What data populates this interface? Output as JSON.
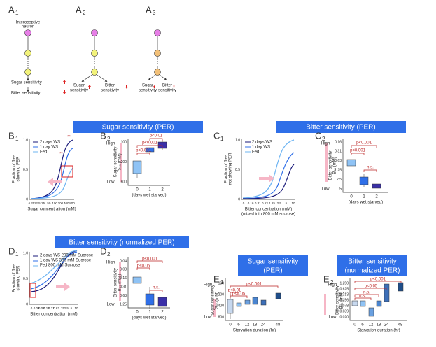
{
  "panels": {
    "a1": {
      "letter": "A",
      "sub": "1",
      "neuron": [
        "Interoceptive",
        "neuron"
      ],
      "sugar": "Sugar sensitivity",
      "bitter": "Bitter sensitivity"
    },
    "a2": {
      "letter": "A",
      "sub": "2",
      "sugar": [
        "Sugar",
        "sensitivity"
      ],
      "bitter": [
        "Bitter",
        "sensitivity"
      ]
    },
    "a3": {
      "letter": "A",
      "sub": "3",
      "sugar": [
        "Sugar",
        "sensitivity"
      ],
      "bitter": [
        "Bitter",
        "sensitivity"
      ]
    },
    "b_header": "Sugar sensitivity (PER)",
    "c_header": "Bitter sensitivity (PER)",
    "d_header": "Bitter sensitivity (normalized PER)",
    "b1": {
      "letter": "B",
      "sub": "1",
      "legend": [
        "2 days WS",
        "1 day  WS",
        "Fed"
      ],
      "y_label": [
        "Fraction of flies",
        "showing PER"
      ],
      "yticks": [
        "0",
        "0.5",
        "1.0"
      ],
      "xticks": [
        "6.25",
        "12.5",
        "25",
        "50",
        "100",
        "200",
        "400",
        "800"
      ],
      "x_label": "Sugar concentration (mM)",
      "stars": "**"
    },
    "b2": {
      "letter": "B",
      "sub": "2",
      "y_label": [
        "Sugar sensitivity",
        "S₅₀ (mM)"
      ],
      "high": "High",
      "low": "Low",
      "yticks": [
        "100",
        "200",
        "800"
      ],
      "xticks": [
        "0",
        "1",
        "2"
      ],
      "x_label": "(days wet starved)",
      "p": [
        "p<0.001",
        "p<0.001",
        "p<0.01"
      ]
    },
    "c1": {
      "letter": "C",
      "sub": "1",
      "legend": [
        "2 days WS",
        "1 day  WS",
        "Fed"
      ],
      "y_label": [
        "Fraction of flies",
        "not showing PER"
      ],
      "yticks": [
        "0",
        "0.5",
        "1.0"
      ],
      "xticks": [
        "0",
        "0.16",
        "0.31",
        "0.63",
        "1.25",
        "2.5",
        "5",
        "10"
      ],
      "x_label": [
        "Bitter concentration (mM)",
        "(mixed into 800 mM sucrose)"
      ]
    },
    "c2": {
      "letter": "C",
      "sub": "2",
      "y_label": [
        "Bitter sensitivity",
        "B₅₀ (mM)"
      ],
      "high": "High",
      "low": "Low",
      "yticks": [
        "0.16",
        "0.31",
        "0.63",
        "1.25",
        "2.5",
        "5"
      ],
      "xticks": [
        "0",
        "1",
        "2"
      ],
      "x_label": "(days wet starved)",
      "p": [
        "p<0.001",
        "p<0.001",
        "n.s."
      ]
    },
    "d1": {
      "letter": "D",
      "sub": "1",
      "legend": [
        "2 days WS 200 mM Sucrose",
        "1 day  WS 300 mM Sucrose",
        "Fed       800 mM Sucrose"
      ],
      "y_label": [
        "Fraction of flies",
        "showing PER"
      ],
      "yticks": [
        "0",
        "0.5",
        "1.0"
      ],
      "xticks": [
        "0",
        "0.04",
        "0.08",
        "0.16",
        "0.31",
        "0.63",
        "1.25",
        "2.5",
        "5",
        "10"
      ],
      "x_label": "Bitter concentration (mM)"
    },
    "d2": {
      "letter": "D",
      "sub": "2",
      "y_label": [
        "Bitter sensitivity",
        "B₅₀ (mM)"
      ],
      "high": "High",
      "low": "Low",
      "yticks": [
        "0.04",
        "0.08",
        "0.16",
        "0.31",
        "0.63",
        "1.25"
      ],
      "xticks": [
        "0",
        "1",
        "2"
      ],
      "x_label": "(days wet starved)",
      "p": [
        "p<0.001",
        "p<0.05",
        "n.s."
      ]
    },
    "e1": {
      "letter": "E",
      "sub": "1",
      "header": [
        "Sugar sensitivity",
        "(PER)"
      ],
      "y_label": [
        "Sugar sensitivity",
        "S₅₀ (mM)"
      ],
      "high": "High",
      "low": "Low",
      "yticks": [
        "100",
        "200",
        "400",
        "800"
      ],
      "xticks": [
        "0",
        "6",
        "12",
        "18",
        "24",
        "48"
      ],
      "x_label": "Starvation duration (hr)",
      "p": [
        "p<0.001",
        "p<0.01",
        "p<0.05"
      ]
    },
    "e2": {
      "letter": "E",
      "sub": "2",
      "header": [
        "Bitter sensitivity",
        "(normalized PER)"
      ],
      "y_label": [
        "Bitter sensitivity",
        "B₅₀ (mM)"
      ],
      "high": "High",
      "low": "Low",
      "yticks": [
        "1.250",
        "0.625",
        "0.313",
        "0.156",
        "0.078",
        "0.039",
        "0.020"
      ],
      "xticks": [
        "0",
        "6",
        "12",
        "18",
        "24",
        "48"
      ],
      "x_label": "Starvation duration (hr)",
      "p": [
        "p<0.001",
        "p<0.05",
        "n.s.",
        "n.s."
      ]
    }
  }
}
